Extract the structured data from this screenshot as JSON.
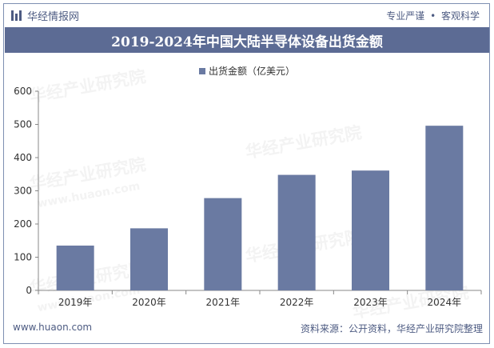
{
  "header": {
    "brand": "华经情报网",
    "slogan_a": "专业严谨",
    "slogan_sep": "•",
    "slogan_b": "客观科学"
  },
  "title": "2019-2024年中国大陆半导体设备出货金额",
  "legend": {
    "label": "出货金额（亿美元）"
  },
  "watermark": {
    "text": "华经产业研究院",
    "sub": "www.huaon.com"
  },
  "footer": {
    "site": "www.huaon.com",
    "source": "资料来源：公开资料，华经产业研究院整理"
  },
  "colors": {
    "bar": "#6a7aa2",
    "title_bg": "#5c6b94",
    "axis": "#888888"
  },
  "chart_data": {
    "type": "bar",
    "title": "2019-2024年中国大陆半导体设备出货金额",
    "categories": [
      "2019年",
      "2020年",
      "2021年",
      "2022年",
      "2023年",
      "2024年"
    ],
    "series": [
      {
        "name": "出货金额（亿美元）",
        "values": [
          135,
          187,
          278,
          348,
          361,
          496
        ]
      }
    ],
    "xlabel": "",
    "ylabel": "",
    "ylim": [
      0,
      600
    ],
    "yticks": [
      0,
      100,
      200,
      300,
      400,
      500,
      600
    ],
    "grid": false,
    "legend_position": "top-center"
  }
}
